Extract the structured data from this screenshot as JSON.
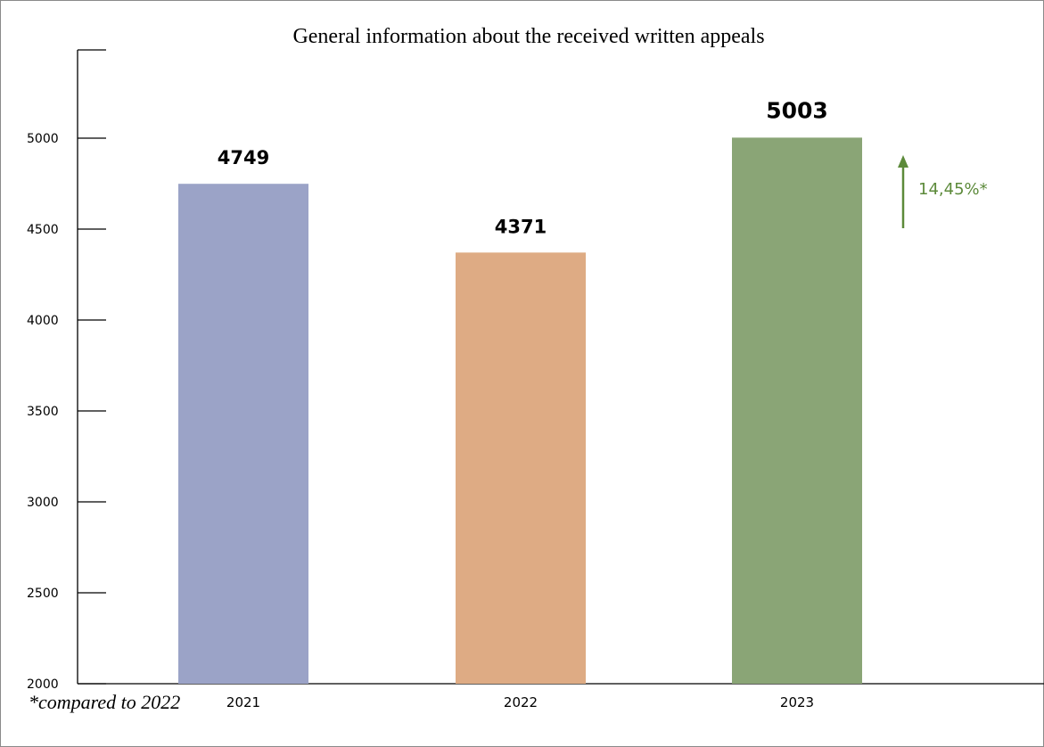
{
  "title": "General information about the received written appeals",
  "footnote": "*compared to 2022",
  "annotation": {
    "text": "14,45%*",
    "color": "#5c8a3a",
    "icon": "arrow-up-icon"
  },
  "chart_data": {
    "type": "bar",
    "title": "General information about the received written appeals",
    "xlabel": "",
    "ylabel": "",
    "categories": [
      "2021",
      "2022",
      "2023"
    ],
    "values": [
      4749,
      4371,
      5003
    ],
    "value_labels": [
      "4749",
      "4371",
      "5003"
    ],
    "colors": [
      "#9ba3c7",
      "#deab84",
      "#8aa576"
    ],
    "ylim": [
      2000,
      5400
    ],
    "yticks": [
      2000,
      2500,
      3000,
      3500,
      4000,
      4500,
      5000
    ],
    "ytick_labels": [
      "2000",
      "2500",
      "3000",
      "3500",
      "4000",
      "4500",
      "5000"
    ],
    "grid": false,
    "legend": "none"
  }
}
